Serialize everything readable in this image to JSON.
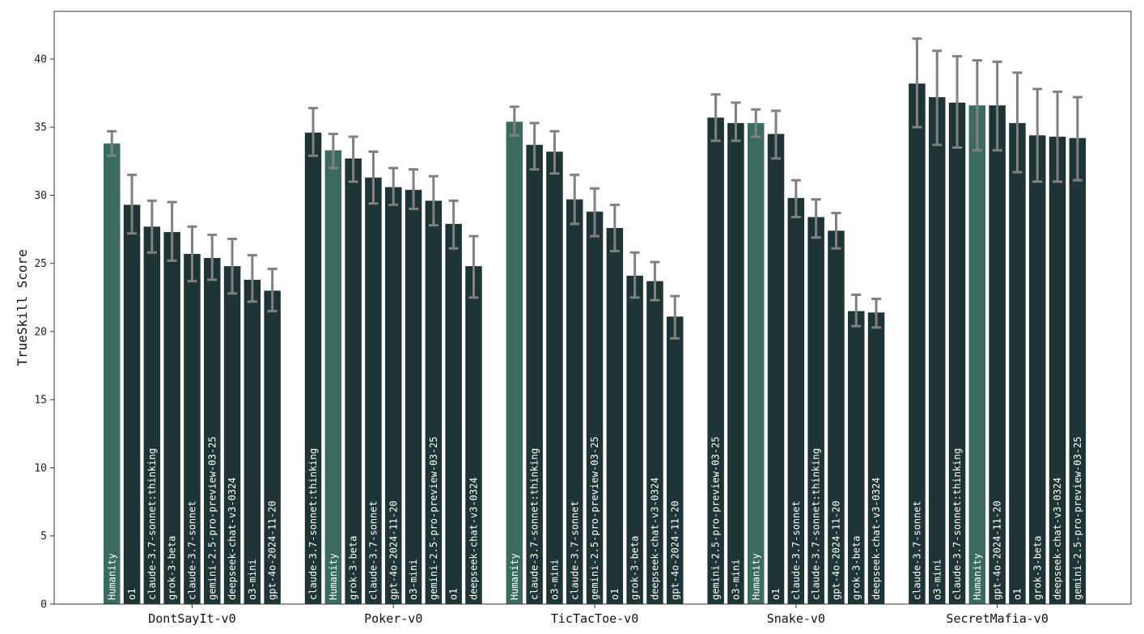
{
  "chart_data": {
    "type": "bar",
    "title": "",
    "xlabel": "",
    "ylabel": "TrueSkill Score",
    "ylim": [
      0,
      43.5
    ],
    "yticks": [
      0,
      5,
      10,
      15,
      20,
      25,
      30,
      35,
      40
    ],
    "grid": false,
    "legend": "none",
    "colors": {
      "human": "#3b6b5e",
      "model": "#1f3434",
      "errorbar": "#808080",
      "label_text": "#ffffff"
    },
    "groups": [
      {
        "name": "DontSayIt-v0",
        "bars": [
          {
            "label": "Humanity",
            "value": 33.8,
            "err_low": 32.9,
            "err_high": 34.7,
            "human": true
          },
          {
            "label": "o1",
            "value": 29.3,
            "err_low": 27.2,
            "err_high": 31.5
          },
          {
            "label": "claude-3.7-sonnet:thinking",
            "value": 27.7,
            "err_low": 25.8,
            "err_high": 29.6
          },
          {
            "label": "grok-3-beta",
            "value": 27.3,
            "err_low": 25.2,
            "err_high": 29.5
          },
          {
            "label": "claude-3.7-sonnet",
            "value": 25.7,
            "err_low": 23.7,
            "err_high": 27.7
          },
          {
            "label": "gemini-2.5-pro-preview-03-25",
            "value": 25.4,
            "err_low": 23.8,
            "err_high": 27.1
          },
          {
            "label": "deepseek-chat-v3-0324",
            "value": 24.8,
            "err_low": 22.8,
            "err_high": 26.8
          },
          {
            "label": "o3-mini",
            "value": 23.8,
            "err_low": 22.2,
            "err_high": 25.6
          },
          {
            "label": "gpt-4o-2024-11-20",
            "value": 23.0,
            "err_low": 21.5,
            "err_high": 24.6
          }
        ]
      },
      {
        "name": "Poker-v0",
        "bars": [
          {
            "label": "claude-3.7-sonnet:thinking",
            "value": 34.6,
            "err_low": 32.9,
            "err_high": 36.4
          },
          {
            "label": "Humanity",
            "value": 33.3,
            "err_low": 32.0,
            "err_high": 34.5,
            "human": true
          },
          {
            "label": "grok-3-beta",
            "value": 32.7,
            "err_low": 31.0,
            "err_high": 34.3
          },
          {
            "label": "claude-3.7-sonnet",
            "value": 31.3,
            "err_low": 29.4,
            "err_high": 33.2
          },
          {
            "label": "gpt-4o-2024-11-20",
            "value": 30.6,
            "err_low": 29.3,
            "err_high": 32.0
          },
          {
            "label": "o3-mini",
            "value": 30.4,
            "err_low": 29.0,
            "err_high": 31.9
          },
          {
            "label": "gemini-2.5-pro-preview-03-25",
            "value": 29.6,
            "err_low": 27.8,
            "err_high": 31.4
          },
          {
            "label": "o1",
            "value": 27.9,
            "err_low": 26.1,
            "err_high": 29.6
          },
          {
            "label": "deepseek-chat-v3-0324",
            "value": 24.8,
            "err_low": 22.5,
            "err_high": 27.0
          }
        ]
      },
      {
        "name": "TicTacToe-v0",
        "bars": [
          {
            "label": "Humanity",
            "value": 35.4,
            "err_low": 34.4,
            "err_high": 36.5,
            "human": true
          },
          {
            "label": "claude-3.7-sonnet:thinking",
            "value": 33.7,
            "err_low": 31.9,
            "err_high": 35.3
          },
          {
            "label": "o3-mini",
            "value": 33.2,
            "err_low": 31.6,
            "err_high": 34.7
          },
          {
            "label": "claude-3.7-sonnet",
            "value": 29.7,
            "err_low": 27.9,
            "err_high": 31.5
          },
          {
            "label": "gemini-2.5-pro-preview-03-25",
            "value": 28.8,
            "err_low": 27.0,
            "err_high": 30.5
          },
          {
            "label": "o1",
            "value": 27.6,
            "err_low": 25.9,
            "err_high": 29.3
          },
          {
            "label": "grok-3-beta",
            "value": 24.1,
            "err_low": 22.5,
            "err_high": 25.8
          },
          {
            "label": "deepseek-chat-v3-0324",
            "value": 23.7,
            "err_low": 22.3,
            "err_high": 25.1
          },
          {
            "label": "gpt-4o-2024-11-20",
            "value": 21.1,
            "err_low": 19.5,
            "err_high": 22.6
          }
        ]
      },
      {
        "name": "Snake-v0",
        "bars": [
          {
            "label": "gemini-2.5-pro-preview-03-25",
            "value": 35.7,
            "err_low": 34.0,
            "err_high": 37.4
          },
          {
            "label": "o3-mini",
            "value": 35.3,
            "err_low": 34.0,
            "err_high": 36.8
          },
          {
            "label": "Humanity",
            "value": 35.3,
            "err_low": 34.3,
            "err_high": 36.3,
            "human": true
          },
          {
            "label": "o1",
            "value": 34.5,
            "err_low": 32.7,
            "err_high": 36.2
          },
          {
            "label": "claude-3.7-sonnet",
            "value": 29.8,
            "err_low": 28.4,
            "err_high": 31.1
          },
          {
            "label": "claude-3.7-sonnet:thinking",
            "value": 28.4,
            "err_low": 26.9,
            "err_high": 29.7
          },
          {
            "label": "gpt-4o-2024-11-20",
            "value": 27.4,
            "err_low": 26.1,
            "err_high": 28.7
          },
          {
            "label": "grok-3-beta",
            "value": 21.5,
            "err_low": 20.4,
            "err_high": 22.7
          },
          {
            "label": "deepseek-chat-v3-0324",
            "value": 21.4,
            "err_low": 20.3,
            "err_high": 22.4
          }
        ]
      },
      {
        "name": "SecretMafia-v0",
        "bars": [
          {
            "label": "claude-3.7-sonnet",
            "value": 38.2,
            "err_low": 35.0,
            "err_high": 41.5
          },
          {
            "label": "o3-mini",
            "value": 37.2,
            "err_low": 33.7,
            "err_high": 40.6
          },
          {
            "label": "claude-3.7-sonnet:thinking",
            "value": 36.8,
            "err_low": 33.5,
            "err_high": 40.2
          },
          {
            "label": "Humanity",
            "value": 36.6,
            "err_low": 33.3,
            "err_high": 39.9,
            "human": true
          },
          {
            "label": "gpt-4o-2024-11-20",
            "value": 36.6,
            "err_low": 33.3,
            "err_high": 39.8
          },
          {
            "label": "o1",
            "value": 35.3,
            "err_low": 31.7,
            "err_high": 39.0
          },
          {
            "label": "grok-3-beta",
            "value": 34.4,
            "err_low": 31.0,
            "err_high": 37.8
          },
          {
            "label": "deepseek-chat-v3-0324",
            "value": 34.3,
            "err_low": 31.0,
            "err_high": 37.6
          },
          {
            "label": "gemini-2.5-pro-preview-03-25",
            "value": 34.2,
            "err_low": 31.1,
            "err_high": 37.2
          }
        ]
      }
    ]
  }
}
